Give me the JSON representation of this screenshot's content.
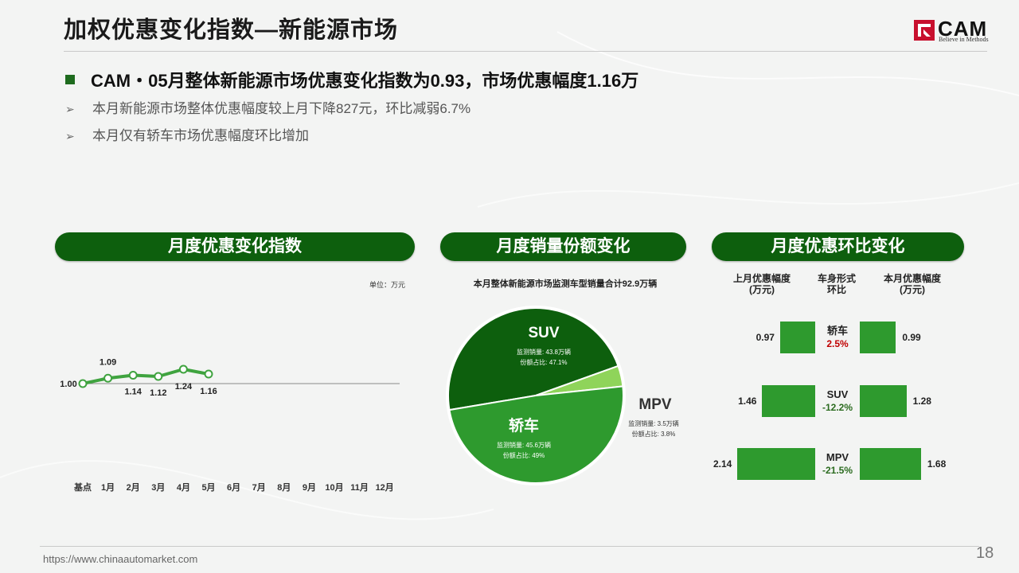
{
  "title": "加权优惠变化指数—新能源市场",
  "logo": {
    "name": "CAM",
    "tagline": "Believe in Methods"
  },
  "headline": "CAM・05月整体新能源市场优惠变化指数为0.93，市场优惠幅度1.16万",
  "bullets": [
    "本月新能源市场整体优惠幅度较上月下降827元，环比减弱6.7%",
    "本月仅有轿车市场优惠幅度环比增加"
  ],
  "sections": {
    "index": "月度优惠变化指数",
    "share": "月度销量份额变化",
    "mom": "月度优惠环比变化"
  },
  "unit_label": "单位：万元",
  "pie_title": "本月整体新能源市场监测车型销量合计92.9万辆",
  "colors": {
    "dark_green": "#0d5f0d",
    "mid_green": "#2e9a2e",
    "light_green": "#8fd45a",
    "line_green": "#3fa33f",
    "positive": "#c00000",
    "negative": "#2b6b1f"
  },
  "chart_data": [
    {
      "type": "line",
      "categories": [
        "基点",
        "1月",
        "2月",
        "3月",
        "4月",
        "5月",
        "6月",
        "7月",
        "8月",
        "9月",
        "10月",
        "11月",
        "12月"
      ],
      "series": [
        {
          "values": [
            1.0,
            1.09,
            1.14,
            1.12,
            1.24,
            1.16,
            null,
            null,
            null,
            null,
            null,
            null,
            null
          ]
        }
      ],
      "data_labels": [
        "1.00",
        "1.09",
        "1.14",
        "1.12",
        "1.24",
        "1.16"
      ],
      "baseline": 1.0,
      "ylabel": "单位：万元"
    },
    {
      "type": "pie",
      "title": "本月整体新能源市场监测车型销量合计92.9万辆",
      "slices": [
        {
          "name": "SUV",
          "share": 47.1,
          "volume_label": "监测销量: 43.8万辆",
          "share_label": "份额占比: 47.1%",
          "color": "#0d5f0d"
        },
        {
          "name": "MPV",
          "share": 3.8,
          "volume_label": "监测销量: 3.5万辆",
          "share_label": "份额占比: 3.8%",
          "color": "#8fd45a"
        },
        {
          "name": "轿车",
          "share": 49,
          "volume_label": "监测销量: 45.6万辆",
          "share_label": "份额占比: 49%",
          "color": "#2e9a2e"
        }
      ]
    },
    {
      "type": "bar",
      "headers": {
        "left": [
          "上月优惠幅度",
          "(万元)"
        ],
        "middle": [
          "车身形式",
          "环比"
        ],
        "right": [
          "本月优惠幅度",
          "(万元)"
        ]
      },
      "rows": [
        {
          "type": "轿车",
          "prev": 0.97,
          "prev_label": "0.97",
          "curr": 0.99,
          "curr_label": "0.99",
          "change": "2.5%",
          "change_sign": "positive"
        },
        {
          "type": "SUV",
          "prev": 1.46,
          "prev_label": "1.46",
          "curr": 1.28,
          "curr_label": "1.28",
          "change": "-12.2%",
          "change_sign": "negative"
        },
        {
          "type": "MPV",
          "prev": 2.14,
          "prev_label": "2.14",
          "curr": 1.68,
          "curr_label": "1.68",
          "change": "-21.5%",
          "change_sign": "negative"
        }
      ]
    }
  ],
  "footer": {
    "url": "https://www.chinaautomarket.com",
    "page": "18"
  }
}
